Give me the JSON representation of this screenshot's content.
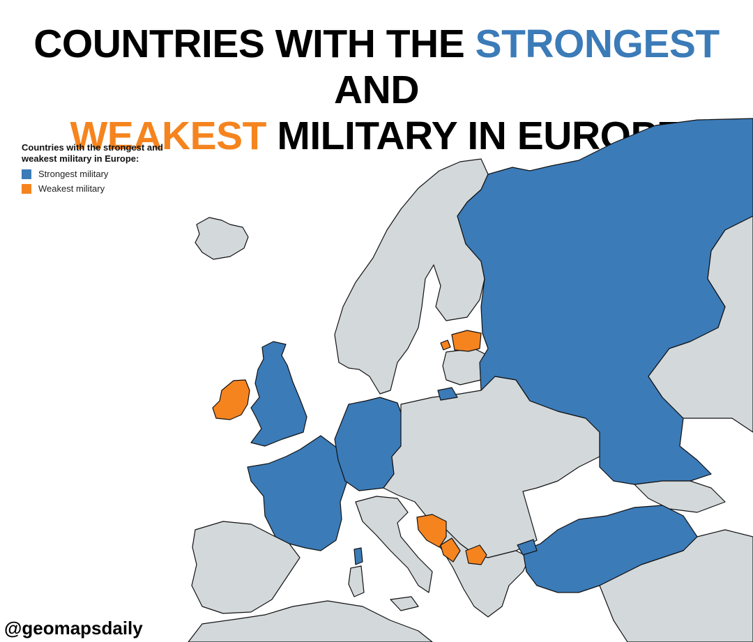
{
  "title": {
    "part1": "COUNTRIES WITH THE ",
    "highlight1": "STRONGEST",
    "part2": " AND",
    "highlight2": "WEAKEST",
    "part3": " MILITARY IN EUROPE"
  },
  "legend": {
    "title": "Countries with the strongest and weakest military in Europe:",
    "items": [
      {
        "label": "Strongest military",
        "color": "#3b7bb8"
      },
      {
        "label": "Weakest military",
        "color": "#f5841f"
      }
    ]
  },
  "map_colors": {
    "strong": "#3b7bb8",
    "weak": "#f5841f",
    "neutral": "#d3d8db",
    "sea": "#ffffff",
    "border": "#111111"
  },
  "countries": {
    "strongest": [
      "Russia",
      "United Kingdom",
      "France",
      "Germany",
      "Turkey"
    ],
    "weakest": [
      "Ireland",
      "Estonia",
      "Bosnia and Herzegovina",
      "Montenegro",
      "North Macedonia"
    ]
  },
  "credit": "@geomapsdaily"
}
